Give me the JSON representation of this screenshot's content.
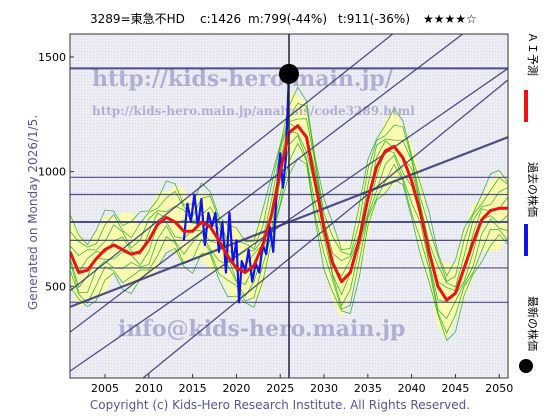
{
  "header": {
    "code_name": "3289=東急不HD",
    "close": "c:1426",
    "min": "m:799(-44%)",
    "target": "t:911(-36%)",
    "rating": "★★★★☆"
  },
  "side_text": "Generated on Monday 2026/1/5.",
  "legend": {
    "items": [
      {
        "label": "ＡＩ予測",
        "color": "#ee1111"
      },
      {
        "label": "過去の株価",
        "color": "#1111ee"
      },
      {
        "label": "最新の株価",
        "color": "#000000"
      }
    ]
  },
  "watermarks": {
    "site": "http://kids-hero.main.jp/",
    "page": "http://kids-hero.main.jp/analysis/code3289.html",
    "email": "info@kids-hero.main.jp"
  },
  "copyright": "Copyright (c) Kids-Hero Research Institute. All Rights Reserved.",
  "colors": {
    "past_price": "#1111ee",
    "ai_forecast": "#ee1111",
    "latest_point": "#000000",
    "band_line": "#333377",
    "envelope_fill": "#ffff99",
    "envelope_lines": "#22aa22",
    "frame_bg": "#eaeaf2"
  },
  "chart_data": {
    "type": "line",
    "x_range": [
      2001,
      2051
    ],
    "y_range": [
      100,
      1600
    ],
    "x_ticks": [
      2005,
      2010,
      2015,
      2020,
      2025,
      2030,
      2035,
      2040,
      2045,
      2050
    ],
    "y_ticks": [
      500,
      1000,
      1500
    ],
    "horizontal_levels": [
      1450,
      975,
      900,
      780,
      700,
      580,
      430
    ],
    "latest_point": {
      "x": 2026,
      "y": 1426
    },
    "current_year_marker": 2026,
    "trend_channel_lines": [
      {
        "x0": 2001,
        "y0": 410,
        "x1": 2051,
        "y1": 1150
      },
      {
        "x0": 2001,
        "y0": 130,
        "x1": 2051,
        "y1": 1450
      },
      {
        "x0": 2001,
        "y0": 300,
        "x1": 2051,
        "y1": 1750
      },
      {
        "x0": 2001,
        "y0": 480,
        "x1": 2051,
        "y1": 2000
      },
      {
        "x0": 2001,
        "y0": -160,
        "x1": 2051,
        "y1": 1400
      }
    ],
    "series": [
      {
        "name": "過去の株価",
        "x": [
          2014.0,
          2014.4,
          2014.8,
          2015.2,
          2015.6,
          2016.0,
          2016.4,
          2016.8,
          2017.2,
          2017.6,
          2018.0,
          2018.4,
          2018.8,
          2019.2,
          2019.6,
          2020.0,
          2020.3,
          2020.6,
          2021.0,
          2021.4,
          2021.8,
          2022.2,
          2022.6,
          2023.0,
          2023.4,
          2023.8,
          2024.2,
          2024.6,
          2025.0,
          2025.3,
          2025.6,
          2026.0
        ],
        "values": [
          700,
          860,
          780,
          900,
          760,
          880,
          680,
          820,
          760,
          820,
          650,
          780,
          560,
          820,
          600,
          700,
          430,
          610,
          570,
          660,
          520,
          600,
          560,
          680,
          640,
          760,
          650,
          920,
          1080,
          930,
          1040,
          1426
        ]
      },
      {
        "name": "ＡＩ予測",
        "x": [
          2001,
          2002,
          2003,
          2004,
          2005,
          2006,
          2007,
          2008,
          2009,
          2010,
          2011,
          2012,
          2013,
          2014,
          2015,
          2016,
          2017,
          2018,
          2019,
          2020,
          2021,
          2022,
          2023,
          2024,
          2025,
          2026,
          2027,
          2028,
          2029,
          2030,
          2031,
          2032,
          2033,
          2034,
          2035,
          2036,
          2037,
          2038,
          2039,
          2040,
          2041,
          2042,
          2043,
          2044,
          2045,
          2046,
          2047,
          2048,
          2049,
          2050,
          2051
        ],
        "values": [
          650,
          560,
          570,
          620,
          660,
          680,
          660,
          640,
          650,
          700,
          770,
          800,
          780,
          740,
          740,
          780,
          760,
          700,
          630,
          580,
          560,
          590,
          680,
          810,
          1000,
          1170,
          1200,
          1150,
          950,
          750,
          600,
          520,
          560,
          700,
          880,
          1020,
          1090,
          1110,
          1060,
          960,
          820,
          650,
          500,
          440,
          470,
          580,
          690,
          790,
          830,
          840,
          840
        ]
      }
    ]
  }
}
